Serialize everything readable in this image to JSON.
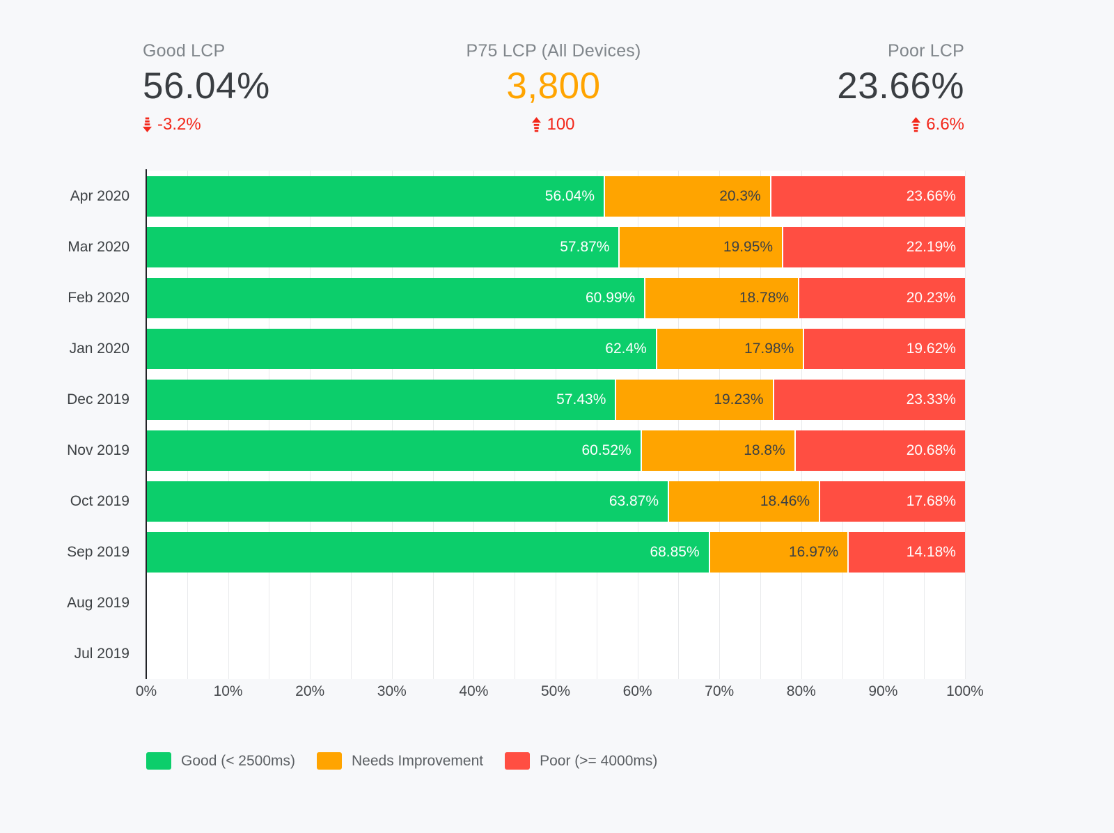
{
  "kpis": [
    {
      "label": "Good LCP",
      "value": "56.04%",
      "value_color": "#3a3e42",
      "delta": "-3.2%",
      "delta_direction": "down",
      "delta_color": "#f3271a"
    },
    {
      "label": "P75 LCP (All Devices)",
      "value": "3,800",
      "value_color": "#ffa400",
      "delta": "100",
      "delta_direction": "up",
      "delta_color": "#f3271a"
    },
    {
      "label": "Poor LCP",
      "value": "23.66%",
      "value_color": "#3a3e42",
      "delta": "6.6%",
      "delta_direction": "up",
      "delta_color": "#f3271a"
    }
  ],
  "chart_data": {
    "type": "bar",
    "orientation": "horizontal",
    "stacked": true,
    "unit": "%",
    "xlim": [
      0,
      100
    ],
    "grid": "vertical lines every 5%",
    "legend_position": "bottom",
    "categories": [
      "Apr 2020",
      "Mar 2020",
      "Feb 2020",
      "Jan 2020",
      "Dec 2019",
      "Nov 2019",
      "Oct 2019",
      "Sep 2019",
      "Aug 2019",
      "Jul 2019"
    ],
    "series": [
      {
        "key": "good",
        "name": "Good (< 2500ms)",
        "color": "#0cce6b",
        "label_color": "#ffffff",
        "values": [
          56.04,
          57.87,
          60.99,
          62.4,
          57.43,
          60.52,
          63.87,
          68.85,
          null,
          null
        ]
      },
      {
        "key": "needs-improvement",
        "name": "Needs Improvement",
        "color": "#ffa400",
        "label_color": "#3b4045",
        "values": [
          20.3,
          19.95,
          18.78,
          17.98,
          19.23,
          18.8,
          18.46,
          16.97,
          null,
          null
        ]
      },
      {
        "key": "poor",
        "name": "Poor (>= 4000ms)",
        "color": "#ff4e42",
        "label_color": "#ffffff",
        "values": [
          23.66,
          22.19,
          20.23,
          19.62,
          23.33,
          20.68,
          17.68,
          14.18,
          null,
          null
        ]
      }
    ],
    "x_ticks": [
      "0%",
      "10%",
      "20%",
      "30%",
      "40%",
      "50%",
      "60%",
      "70%",
      "80%",
      "90%",
      "100%"
    ]
  }
}
